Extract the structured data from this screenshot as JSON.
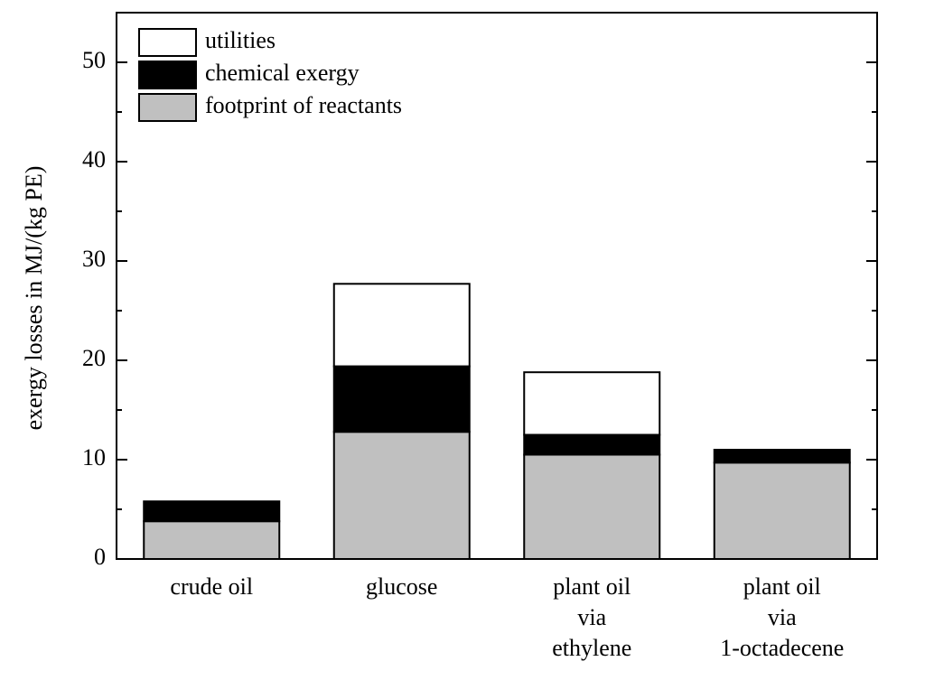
{
  "chart_data": {
    "type": "stacked_bar",
    "y_label": "exergy losses in MJ/(kg PE)",
    "categories": [
      "crude oil",
      "glucose",
      "plant oil\nvia\nethylene",
      "plant oil\nvia\n1-octadecene"
    ],
    "series": [
      {
        "name": "footprint of reactants",
        "color": "#c0c0c0",
        "values": [
          3.8,
          12.8,
          10.5,
          9.7
        ]
      },
      {
        "name": "chemical exergy",
        "color": "#000000",
        "values": [
          2.0,
          6.6,
          2.0,
          1.3
        ]
      },
      {
        "name": "utilities",
        "color": "#ffffff",
        "values": [
          0,
          8.3,
          6.3,
          0
        ]
      }
    ],
    "ylim": [
      0,
      55
    ],
    "yticks": [
      0,
      10,
      20,
      30,
      40,
      50
    ],
    "yminor_ticks": [
      5,
      15,
      25,
      35,
      45,
      55
    ],
    "legend": "upper-left",
    "grid": false
  }
}
